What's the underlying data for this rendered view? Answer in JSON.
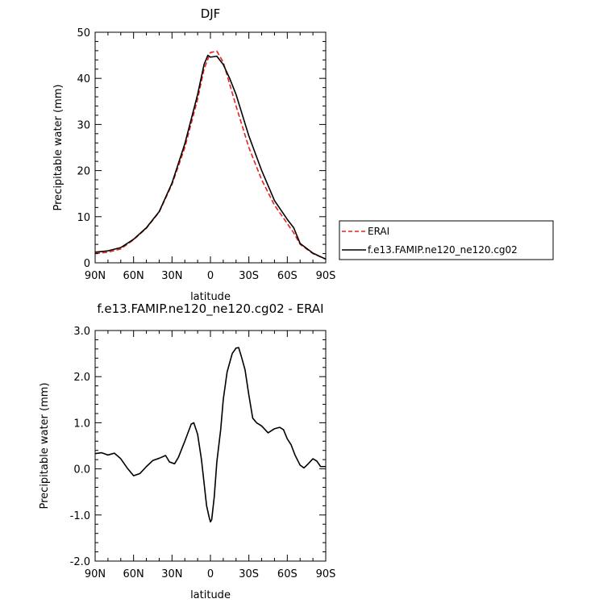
{
  "chart_data": [
    {
      "type": "line",
      "title": "DJF",
      "xlabel": "latitude",
      "ylabel": "Precipitable water (mm)",
      "xlim": [
        90,
        -90
      ],
      "ylim": [
        0,
        50
      ],
      "x_tick_values": [
        90,
        60,
        30,
        0,
        -30,
        -60,
        -90
      ],
      "x_tick_labels": [
        "90N",
        "60N",
        "30N",
        "0",
        "30S",
        "60S",
        "90S"
      ],
      "y_tick_values": [
        0,
        10,
        20,
        30,
        40,
        50
      ],
      "y_tick_labels": [
        "0",
        "10",
        "20",
        "30",
        "40",
        "50"
      ],
      "legend_position": "right",
      "series": [
        {
          "name": "ERAI",
          "color": "#e8201e",
          "dash": "dashed",
          "x": [
            90,
            80,
            70,
            60,
            50,
            40,
            30,
            20,
            10,
            5,
            0,
            -5,
            -10,
            -20,
            -30,
            -40,
            -50,
            -60,
            -65,
            -70,
            -80,
            -90
          ],
          "y": [
            2.0,
            2.3,
            3.0,
            5.0,
            7.5,
            11.0,
            17.0,
            25.0,
            35.5,
            42.0,
            45.6,
            45.9,
            43.5,
            34.0,
            25.0,
            18.0,
            12.5,
            8.5,
            6.5,
            4.0,
            2.0,
            0.8
          ]
        },
        {
          "name": "f.e13.FAMIP.ne120_ne120.cg02",
          "color": "#000000",
          "dash": "solid",
          "x": [
            90,
            80,
            70,
            60,
            50,
            40,
            30,
            20,
            10,
            5,
            2,
            0,
            -5,
            -10,
            -15,
            -20,
            -30,
            -40,
            -50,
            -60,
            -65,
            -70,
            -80,
            -90
          ],
          "y": [
            2.3,
            2.6,
            3.3,
            5.1,
            7.6,
            11.1,
            17.3,
            25.8,
            36.5,
            43.0,
            45.0,
            44.6,
            44.8,
            43.0,
            40.0,
            36.5,
            27.5,
            20.0,
            13.5,
            9.4,
            7.6,
            4.2,
            2.1,
            0.8
          ]
        }
      ]
    },
    {
      "type": "line",
      "title": "f.e13.FAMIP.ne120_ne120.cg02 - ERAI",
      "xlabel": "latitude",
      "ylabel": "Precipitable water (mm)",
      "xlim": [
        90,
        -90
      ],
      "ylim": [
        -2.0,
        3.0
      ],
      "x_tick_values": [
        90,
        60,
        30,
        0,
        -30,
        -60,
        -90
      ],
      "x_tick_labels": [
        "90N",
        "60N",
        "30N",
        "0",
        "30S",
        "60S",
        "90S"
      ],
      "y_tick_values": [
        -2.0,
        -1.0,
        0.0,
        1.0,
        2.0,
        3.0
      ],
      "y_tick_labels": [
        "-2.0",
        "-1.0",
        "0.0",
        "1.0",
        "2.0",
        "3.0"
      ],
      "series": [
        {
          "color": "#000000",
          "dash": "solid",
          "x": [
            90,
            85,
            80,
            75,
            70,
            65,
            60,
            55,
            50,
            45,
            40,
            35,
            32,
            28,
            25,
            20,
            15,
            13,
            10,
            7,
            5,
            3,
            1,
            0,
            -1,
            -3,
            -5,
            -8,
            -10,
            -13,
            -17,
            -20,
            -22,
            -24,
            -27,
            -30,
            -33,
            -36,
            -40,
            -45,
            -50,
            -54,
            -57,
            -60,
            -63,
            -66,
            -70,
            -73,
            -76,
            -80,
            -83,
            -86,
            -90
          ],
          "y": [
            0.33,
            0.35,
            0.3,
            0.34,
            0.22,
            0.02,
            -0.15,
            -0.1,
            0.05,
            0.18,
            0.23,
            0.29,
            0.15,
            0.11,
            0.25,
            0.6,
            0.97,
            1.0,
            0.75,
            0.2,
            -0.3,
            -0.8,
            -1.05,
            -1.15,
            -1.1,
            -0.6,
            0.15,
            0.85,
            1.5,
            2.1,
            2.5,
            2.62,
            2.63,
            2.45,
            2.15,
            1.6,
            1.1,
            1.0,
            0.93,
            0.78,
            0.87,
            0.9,
            0.85,
            0.65,
            0.52,
            0.3,
            0.08,
            0.02,
            0.1,
            0.22,
            0.17,
            0.05,
            0.05
          ]
        }
      ]
    }
  ]
}
